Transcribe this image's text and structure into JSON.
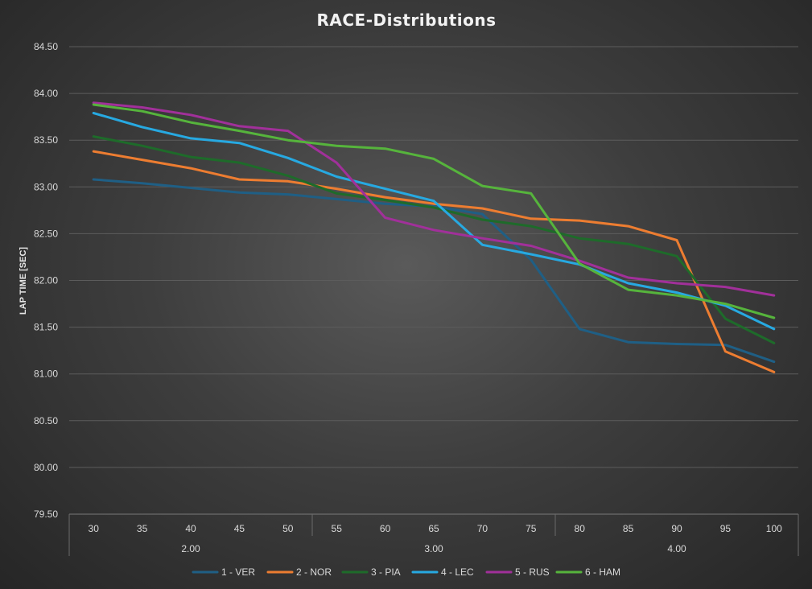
{
  "chart_data": {
    "type": "line",
    "title": "RACE-Distributions",
    "xlabel": "",
    "ylabel": "LAP TIME [SEC]",
    "ylim": [
      79.5,
      84.5
    ],
    "yticks": [
      "79.50",
      "80.00",
      "80.50",
      "81.00",
      "81.50",
      "82.00",
      "82.50",
      "83.00",
      "83.50",
      "84.00",
      "84.50"
    ],
    "ytick_values": [
      79.5,
      80.0,
      80.5,
      81.0,
      81.5,
      82.0,
      82.5,
      83.0,
      83.5,
      84.0,
      84.5
    ],
    "categories": [
      "30",
      "35",
      "40",
      "45",
      "50",
      "55",
      "60",
      "65",
      "70",
      "75",
      "80",
      "85",
      "90",
      "95",
      "100"
    ],
    "groups": [
      {
        "label": "2.00",
        "span": 5
      },
      {
        "label": "3.00",
        "span": 5
      },
      {
        "label": "4.00",
        "span": 5
      }
    ],
    "grid": true,
    "legend_position": "bottom",
    "series": [
      {
        "name": "1 - VER",
        "color": "#1f5f85",
        "values": [
          83.08,
          83.04,
          82.99,
          82.94,
          82.92,
          82.87,
          82.82,
          82.79,
          82.71,
          82.22,
          81.48,
          81.34,
          81.32,
          81.31,
          81.13
        ]
      },
      {
        "name": "2 - NOR",
        "color": "#ed7d31",
        "values": [
          83.38,
          83.29,
          83.2,
          83.08,
          83.06,
          82.98,
          82.89,
          82.82,
          82.77,
          82.66,
          82.64,
          82.58,
          82.43,
          81.24,
          81.02
        ]
      },
      {
        "name": "3 - PIA",
        "color": "#1e6b2a",
        "values": [
          83.54,
          83.44,
          83.32,
          83.26,
          83.12,
          82.93,
          82.86,
          82.78,
          82.65,
          82.58,
          82.45,
          82.39,
          82.26,
          81.59,
          81.33
        ]
      },
      {
        "name": "4 - LEC",
        "color": "#27a9e1",
        "values": [
          83.79,
          83.64,
          83.52,
          83.47,
          83.31,
          83.11,
          82.98,
          82.85,
          82.38,
          82.28,
          82.17,
          81.97,
          81.87,
          81.73,
          81.48
        ]
      },
      {
        "name": "5 - RUS",
        "color": "#a1309a",
        "values": [
          83.9,
          83.85,
          83.77,
          83.65,
          83.6,
          83.26,
          82.67,
          82.54,
          82.45,
          82.37,
          82.21,
          82.03,
          81.97,
          81.93,
          81.84
        ]
      },
      {
        "name": "6 - HAM",
        "color": "#56b43c",
        "values": [
          83.88,
          83.81,
          83.69,
          83.6,
          83.5,
          83.44,
          83.41,
          83.3,
          83.01,
          82.93,
          82.18,
          81.9,
          81.84,
          81.75,
          81.6
        ]
      }
    ]
  }
}
